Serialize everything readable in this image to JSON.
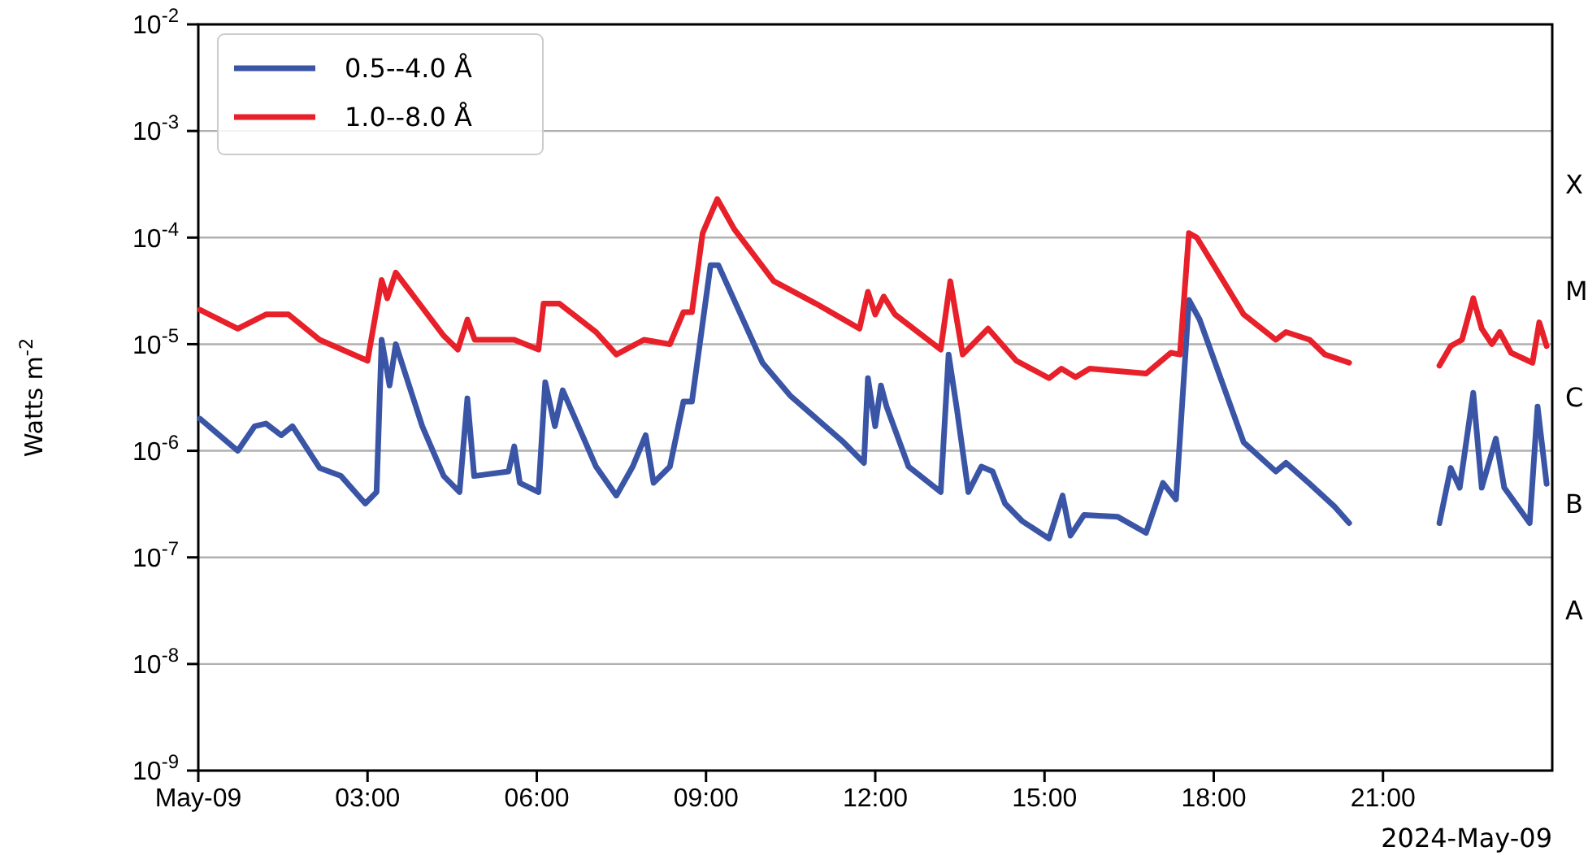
{
  "chart_data": {
    "type": "line",
    "ylabel": "Watts m$^{-2}$",
    "log": "y",
    "grid": "y",
    "legend": "top left",
    "line_style": "solid",
    "marker": "none",
    "xlim": [
      0,
      24
    ],
    "xticks": [
      {
        "value": 0,
        "label": "May-09"
      },
      {
        "value": 3,
        "label": "03:00"
      },
      {
        "value": 6,
        "label": "06:00"
      },
      {
        "value": 9,
        "label": "09:00"
      },
      {
        "value": 12,
        "label": "12:00"
      },
      {
        "value": 15,
        "label": "15:00"
      },
      {
        "value": 18,
        "label": "18:00"
      },
      {
        "value": 21,
        "label": "21:00"
      }
    ],
    "ylim": [
      1e-09,
      0.01
    ],
    "yticks": [
      {
        "value": 1e-09,
        "label": "10$^{-9}$"
      },
      {
        "value": 1e-08,
        "label": "10$^{-8}$"
      },
      {
        "value": 1e-07,
        "label": "10$^{-7}$"
      },
      {
        "value": 1e-06,
        "label": "10$^{-6}$"
      },
      {
        "value": 1e-05,
        "label": "10$^{-5}$"
      },
      {
        "value": 0.0001,
        "label": "10$^{-4}$"
      },
      {
        "value": 0.001,
        "label": "10$^{-3}$"
      },
      {
        "value": 0.01,
        "label": "10$^{-2}$"
      }
    ],
    "series": [
      {
        "name": "0.5--4.0 Å",
        "color": "#3a55a6",
        "x": [
          0.03,
          0.7,
          1.0,
          1.2,
          1.47,
          1.67,
          2.15,
          2.53,
          2.96,
          3.16,
          3.25,
          3.39,
          3.5,
          3.97,
          4.35,
          4.63,
          4.77,
          4.89,
          5.5,
          5.6,
          5.7,
          6.03,
          6.15,
          6.32,
          6.46,
          7.05,
          7.41,
          7.7,
          7.93,
          8.07,
          8.36,
          8.6,
          8.75,
          9.08,
          9.22,
          10.0,
          10.49,
          11.44,
          11.8,
          11.87,
          12.0,
          12.1,
          12.2,
          12.59,
          13.16,
          13.3,
          13.45,
          13.65,
          13.88,
          14.08,
          14.3,
          14.6,
          15.08,
          15.32,
          15.46,
          15.7,
          16.3,
          16.8,
          17.1,
          17.33,
          17.56,
          17.75,
          18.53,
          19.1,
          19.28,
          19.7,
          20.14,
          20.4,
          21.2,
          22.0,
          22.2,
          22.36,
          22.6,
          22.75,
          23.0,
          23.15,
          23.6,
          23.74,
          23.9
        ],
        "values": [
          2e-06,
          1e-06,
          1.7e-06,
          1.8e-06,
          1.4e-06,
          1.7e-06,
          6.9e-07,
          5.8e-07,
          3.2e-07,
          4.1e-07,
          1.1e-05,
          4.1e-06,
          1e-05,
          1.7e-06,
          5.8e-07,
          4.1e-07,
          3.1e-06,
          5.8e-07,
          6.4e-07,
          1.1e-06,
          5e-07,
          4.1e-07,
          4.4e-06,
          1.7e-06,
          3.7e-06,
          7.1e-07,
          3.8e-07,
          7.1e-07,
          1.4e-06,
          5e-07,
          7.1e-07,
          2.9e-06,
          2.9e-06,
          5.5e-05,
          5.5e-05,
          6.7e-06,
          3.3e-06,
          1.2e-06,
          7.7e-07,
          4.8e-06,
          1.7e-06,
          4.1e-06,
          2.6e-06,
          7.1e-07,
          4.1e-07,
          8e-06,
          2.4e-06,
          4.1e-07,
          7.1e-07,
          6.4e-07,
          3.2e-07,
          2.2e-07,
          1.5e-07,
          3.8e-07,
          1.6e-07,
          2.5e-07,
          2.4e-07,
          1.7e-07,
          5e-07,
          3.5e-07,
          2.6e-05,
          1.7e-05,
          1.2e-06,
          6.4e-07,
          7.7e-07,
          4.9e-07,
          3e-07,
          2.1e-07,
          null,
          2.1e-07,
          6.9e-07,
          4.5e-07,
          3.5e-06,
          4.5e-07,
          1.3e-06,
          4.5e-07,
          2.1e-07,
          2.6e-06,
          4.9e-07
        ]
      },
      {
        "name": "1.0--8.0 Å",
        "color": "#e8202a",
        "x": [
          0.03,
          0.7,
          1.2,
          1.6,
          2.15,
          3.0,
          3.25,
          3.35,
          3.5,
          4.35,
          4.6,
          4.77,
          4.9,
          5.6,
          6.03,
          6.12,
          6.4,
          7.05,
          7.41,
          7.9,
          8.36,
          8.6,
          8.75,
          8.94,
          9.2,
          9.5,
          10.2,
          10.95,
          11.72,
          11.87,
          12.0,
          12.15,
          12.35,
          13.16,
          13.33,
          13.55,
          14.0,
          14.5,
          15.08,
          15.3,
          15.55,
          15.8,
          16.8,
          17.24,
          17.4,
          17.56,
          17.7,
          18.53,
          19.1,
          19.28,
          19.7,
          19.97,
          20.4,
          21.2,
          22.0,
          22.2,
          22.4,
          22.6,
          22.75,
          22.93,
          23.07,
          23.27,
          23.65,
          23.77,
          23.9
        ],
        "values": [
          2.1e-05,
          1.4e-05,
          1.9e-05,
          1.9e-05,
          1.1e-05,
          7e-06,
          4e-05,
          2.7e-05,
          4.7e-05,
          1.2e-05,
          8.9e-06,
          1.7e-05,
          1.1e-05,
          1.1e-05,
          8.9e-06,
          2.4e-05,
          2.4e-05,
          1.3e-05,
          8e-06,
          1.1e-05,
          1e-05,
          2e-05,
          2e-05,
          0.00011,
          0.00023,
          0.00012,
          3.9e-05,
          2.4e-05,
          1.4e-05,
          3.1e-05,
          1.9e-05,
          2.8e-05,
          1.9e-05,
          8.9e-06,
          3.9e-05,
          8e-06,
          1.4e-05,
          7e-06,
          4.8e-06,
          5.9e-06,
          4.9e-06,
          5.9e-06,
          5.3e-06,
          8.3e-06,
          8e-06,
          0.00011,
          0.0001,
          1.9e-05,
          1.1e-05,
          1.3e-05,
          1.1e-05,
          8e-06,
          6.7e-06,
          null,
          6.3e-06,
          9.6e-06,
          1.1e-05,
          2.7e-05,
          1.4e-05,
          1e-05,
          1.3e-05,
          8.3e-06,
          6.7e-06,
          1.6e-05,
          9.6e-06
        ]
      }
    ],
    "annotations": [
      "X",
      "M",
      "C",
      "B",
      "A",
      "2024-May-09"
    ]
  }
}
